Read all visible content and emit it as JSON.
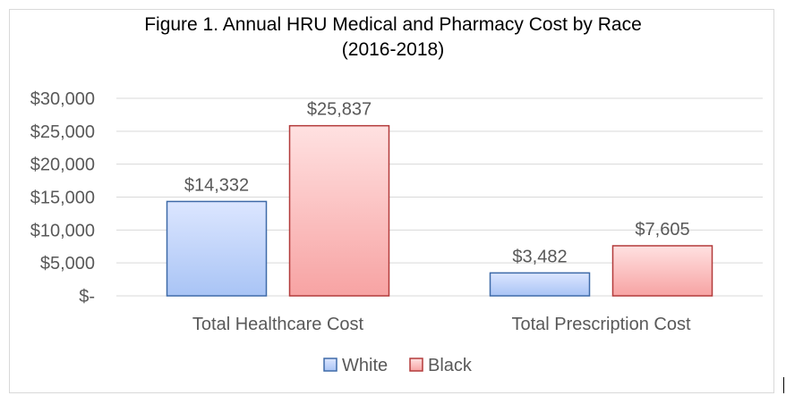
{
  "chart_data": {
    "type": "bar",
    "title_line1": "Figure 1. Annual HRU Medical and Pharmacy Cost by Race",
    "title_line2": "(2016-2018)",
    "categories": [
      "Total Healthcare Cost",
      "Total Prescription Cost"
    ],
    "series": [
      {
        "name": "White",
        "values": [
          14332,
          3482
        ],
        "value_labels": [
          "$14,332",
          "$3,482"
        ],
        "fill_top": "#dce6ff",
        "fill_bottom": "#a9c4f5",
        "stroke": "#3e6aa8"
      },
      {
        "name": "Black",
        "values": [
          25837,
          7605
        ],
        "value_labels": [
          "$25,837",
          "$7,605"
        ],
        "fill_top": "#ffe1e1",
        "fill_bottom": "#f7a3a3",
        "stroke": "#b33b3b"
      }
    ],
    "ylim": [
      0,
      30000
    ],
    "yticks": [
      0,
      5000,
      10000,
      15000,
      20000,
      25000,
      30000
    ],
    "ytick_labels": [
      "$-",
      "$5,000",
      "$10,000",
      "$15,000",
      "$20,000",
      "$25,000",
      "$30,000"
    ],
    "grid": true,
    "legend_position": "bottom"
  }
}
